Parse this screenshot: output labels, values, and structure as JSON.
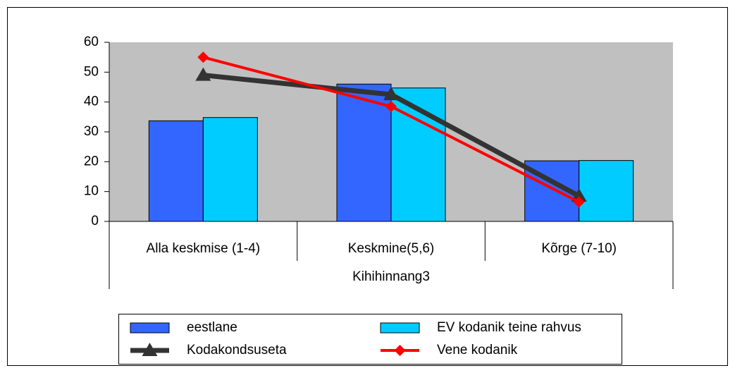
{
  "chart_data": {
    "type": "bar",
    "x_label": "Kihihinnang3",
    "categories": [
      "Alla keskmise (1-4)",
      "Keskmine(5,6)",
      "Kõrge (7-10)"
    ],
    "series": [
      {
        "name": "eestlane",
        "type": "bar",
        "color": "#3366ff",
        "values": [
          33.7,
          46,
          20.3
        ]
      },
      {
        "name": "EV kodanik teine rahvus",
        "type": "bar",
        "color": "#00ccff",
        "values": [
          34.8,
          44.7,
          20.4
        ]
      },
      {
        "name": "Kodakondsuseta",
        "type": "line",
        "color": "#333333",
        "marker": "triangle",
        "values": [
          49,
          42.5,
          8.5
        ]
      },
      {
        "name": "Vene kodanik",
        "type": "line",
        "color": "#ff0000",
        "marker": "diamond",
        "values": [
          55,
          38.5,
          6.5
        ]
      }
    ],
    "ylim": [
      0,
      60
    ],
    "yticks": [
      0,
      10,
      20,
      30,
      40,
      50,
      60
    ],
    "legend": "bottom"
  }
}
